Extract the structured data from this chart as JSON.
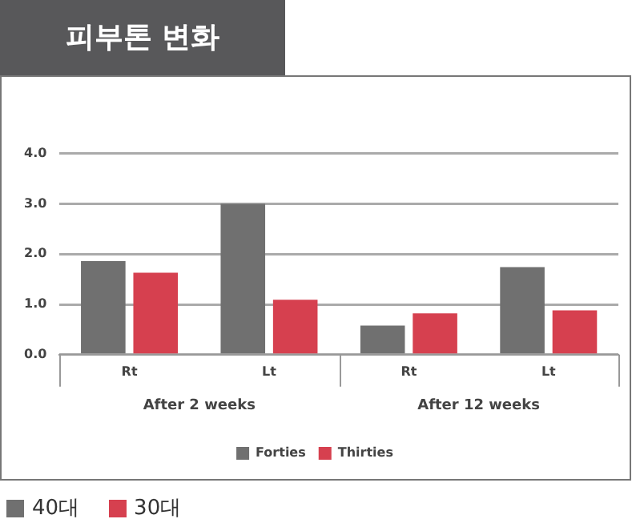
{
  "chart_data": {
    "type": "bar",
    "title": "피부톤 변화",
    "categories": [
      "Rt",
      "Lt",
      "Rt",
      "Lt"
    ],
    "series": [
      {
        "name": "Forties",
        "color": "#707070",
        "values": [
          1.86,
          3.0,
          0.58,
          1.74
        ]
      },
      {
        "name": "Thirties",
        "color": "#d6404f",
        "values": [
          1.63,
          1.09,
          0.82,
          0.88
        ]
      }
    ],
    "ylim": [
      0,
      4
    ],
    "yticks": [
      {
        "value": 0,
        "label": "0.0"
      },
      {
        "value": 1,
        "label": "1.0"
      },
      {
        "value": 2,
        "label": "2.0"
      },
      {
        "value": 3,
        "label": "3.0"
      },
      {
        "value": 4,
        "label": "4.0"
      }
    ],
    "grid": "y",
    "legend": "bottom",
    "annotations": [
      "After 2 weeks",
      "After 12 weeks",
      "40대",
      "30대"
    ]
  }
}
